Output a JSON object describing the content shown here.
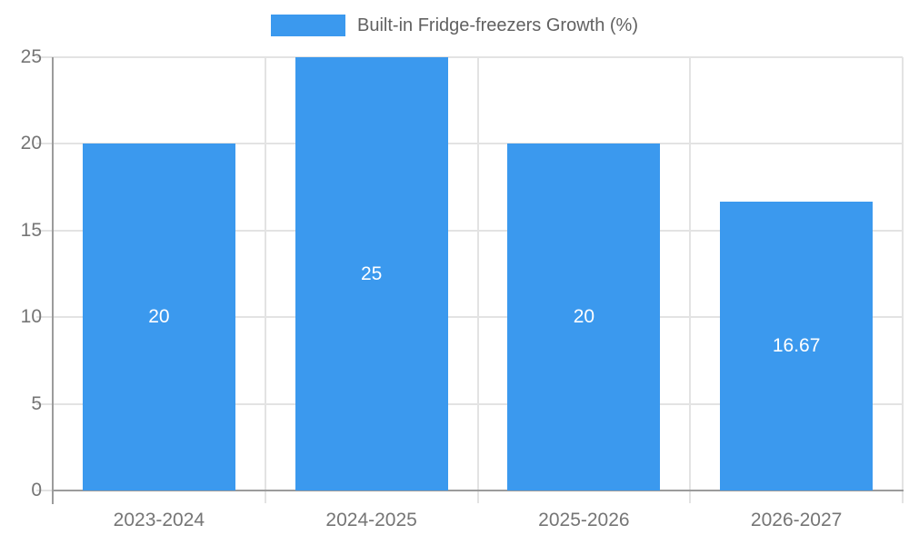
{
  "legend": {
    "label": "Built-in Fridge-freezers Growth (%)"
  },
  "chart_data": {
    "type": "bar",
    "title": "Built-in Fridge-freezers Growth (%)",
    "categories": [
      "2023-2024",
      "2024-2025",
      "2025-2026",
      "2026-2027"
    ],
    "values": [
      20,
      25,
      20,
      16.67
    ],
    "value_labels": [
      "20",
      "25",
      "20",
      "16.67"
    ],
    "xlabel": "",
    "ylabel": "",
    "ylim": [
      0,
      25
    ],
    "yticks": [
      0,
      5,
      10,
      15,
      20,
      25
    ],
    "ytick_labels": [
      "0",
      "5",
      "10",
      "15",
      "20",
      "25"
    ],
    "grid": true,
    "legend_position": "top",
    "colors": {
      "bar": "#3b99ee",
      "value_label": "#ffffff",
      "grid": "#e3e3e3",
      "axis": "#9b9b9b",
      "tick_label": "#757575",
      "legend_text": "#616161"
    }
  }
}
